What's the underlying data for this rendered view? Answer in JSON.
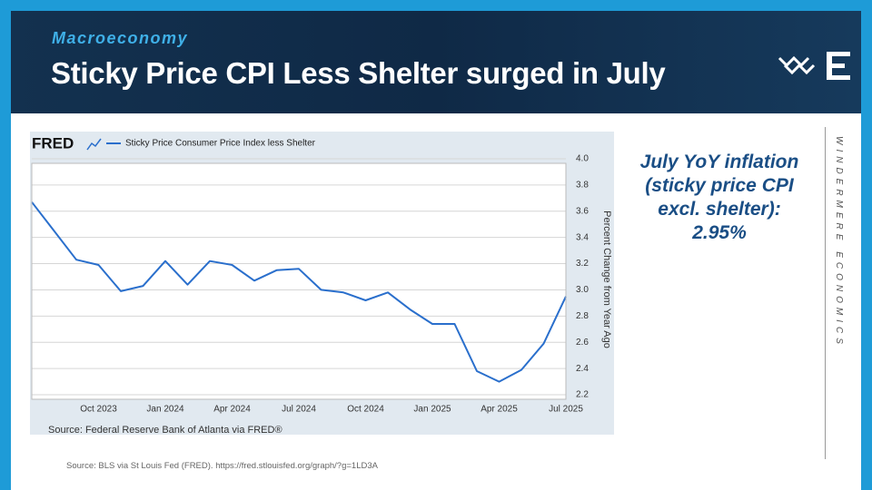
{
  "header": {
    "category": "Macroeconomy",
    "title": "Sticky Price CPI Less Shelter surged in July"
  },
  "chart_data": {
    "type": "line",
    "logo": "FRED",
    "ylabel": "Percent Change from Year Ago",
    "source": "Source: Federal Reserve Bank of Atlanta via FRED®",
    "categories": [
      "",
      "",
      "",
      "Oct 2023",
      "",
      "",
      "Jan 2024",
      "",
      "",
      "Apr 2024",
      "",
      "",
      "Jul 2024",
      "",
      "",
      "Oct 2024",
      "",
      "",
      "Jan 2025",
      "",
      "",
      "Apr 2025",
      "",
      "",
      "Jul 2025"
    ],
    "series": [
      {
        "name": "Sticky Price Consumer Price Index less Shelter",
        "color": "#2a6fcc",
        "values": [
          3.67,
          3.45,
          3.23,
          3.19,
          2.99,
          3.03,
          3.22,
          3.04,
          3.22,
          3.19,
          3.07,
          3.15,
          3.16,
          3.0,
          2.98,
          2.92,
          2.98,
          2.85,
          2.74,
          2.74,
          2.38,
          2.3,
          2.39,
          2.59,
          2.95
        ]
      }
    ],
    "ylim": [
      2.2,
      4.0
    ],
    "yticks": [
      2.2,
      2.4,
      2.6,
      2.8,
      {
        "value": 3.0,
        "label": "3.0"
      },
      3.2,
      3.4,
      3.6,
      3.8,
      {
        "value": 4.0,
        "label": "4.0"
      }
    ],
    "grid": true
  },
  "callout": "July YoY inflation (sticky price CPI excl. shelter): 2.95%",
  "brand": "WINDERMERE ECONOMICS",
  "footer": {
    "source": "Source: BLS via St Louis Fed (FRED). https://fred.stlouisfed.org/graph/?g=1LD3A"
  }
}
